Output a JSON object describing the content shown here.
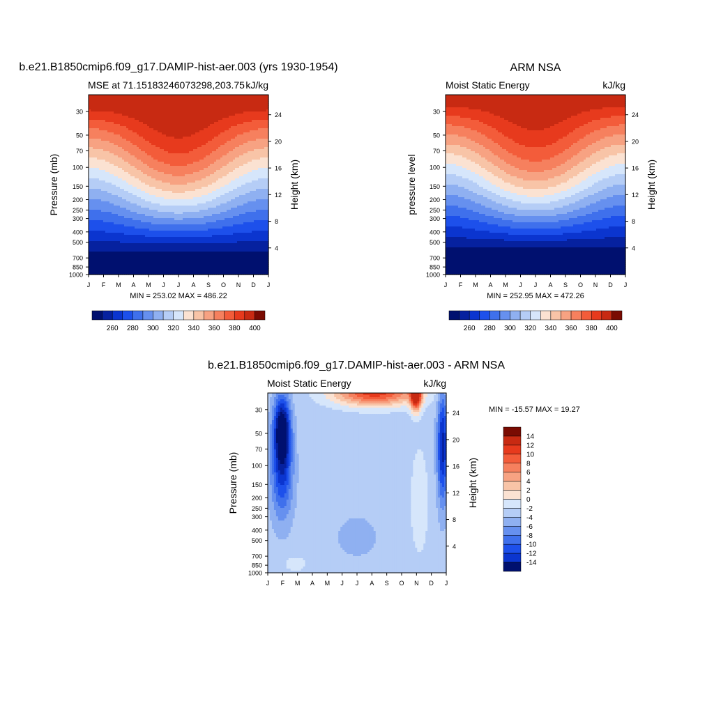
{
  "palette_warm": [
    "#fbe2d2",
    "#f8c4a7",
    "#f7a282",
    "#f6805e",
    "#f35c3a",
    "#e73a1d",
    "#c82a12",
    "#a11b09",
    "#7a0b02"
  ],
  "palette_cool": [
    "#d6e6fb",
    "#b5cdf6",
    "#8fb0f1",
    "#6690ef",
    "#3f70ec",
    "#1d50eb",
    "#0b35cf",
    "#06219f",
    "#00106f"
  ],
  "chart_data": [
    {
      "type": "heatmap",
      "title": "b.e21.B1850cmip6.f09_g17.DAMIP-hist-aer.003 (yrs 1930-1954)",
      "subtitle_left": "MSE at 71.15183246073298,203.75",
      "subtitle_right": "kJ/kg",
      "ylabel": "Pressure (mb)",
      "ylabel_right": "Height (km)",
      "x_ticks": [
        "J",
        "F",
        "M",
        "A",
        "M",
        "J",
        "J",
        "A",
        "S",
        "O",
        "N",
        "D",
        "J"
      ],
      "y_ticks": [
        30,
        50,
        70,
        100,
        150,
        200,
        250,
        300,
        400,
        500,
        700,
        850,
        1000
      ],
      "y_right_ticks": [
        24,
        20,
        16,
        12,
        8,
        4
      ],
      "stats": "MIN = 253.02 MAX = 486.22",
      "levels": [
        260,
        270,
        280,
        290,
        300,
        310,
        320,
        330,
        340,
        350,
        360,
        370,
        380,
        390,
        400
      ],
      "colorbar_labels": [
        "260",
        "280",
        "300",
        "320",
        "340",
        "360",
        "380",
        "400"
      ]
    },
    {
      "type": "heatmap",
      "title": "ARM NSA",
      "subtitle_left": "Moist Static Energy",
      "subtitle_right": "kJ/kg",
      "ylabel": "pressure level",
      "ylabel_right": "Height (km)",
      "x_ticks": [
        "J",
        "F",
        "M",
        "A",
        "M",
        "J",
        "J",
        "A",
        "S",
        "O",
        "N",
        "D",
        "J"
      ],
      "y_ticks": [
        30,
        50,
        70,
        100,
        150,
        200,
        250,
        300,
        400,
        500,
        700,
        850,
        1000
      ],
      "y_right_ticks": [
        24,
        20,
        16,
        12,
        8,
        4
      ],
      "stats": "MIN = 252.95 MAX = 472.26",
      "levels": [
        260,
        270,
        280,
        290,
        300,
        310,
        320,
        330,
        340,
        350,
        360,
        370,
        380,
        390,
        400
      ],
      "colorbar_labels": [
        "260",
        "280",
        "300",
        "320",
        "340",
        "360",
        "380",
        "400"
      ]
    },
    {
      "type": "heatmap",
      "title": "b.e21.B1850cmip6.f09_g17.DAMIP-hist-aer.003 - ARM NSA",
      "subtitle_left": "Moist Static Energy",
      "subtitle_right": "kJ/kg",
      "ylabel": "Pressure (mb)",
      "ylabel_right": "Height (km)",
      "x_ticks": [
        "J",
        "F",
        "M",
        "A",
        "M",
        "J",
        "J",
        "A",
        "S",
        "O",
        "N",
        "D",
        "J"
      ],
      "y_ticks": [
        30,
        50,
        70,
        100,
        150,
        200,
        250,
        300,
        400,
        500,
        700,
        850,
        1000
      ],
      "y_right_ticks": [
        24,
        20,
        16,
        12,
        8,
        4
      ],
      "stats": "MIN = -15.57 MAX =  19.27",
      "levels": [
        -14,
        -12,
        -10,
        -8,
        -6,
        -4,
        -2,
        0,
        2,
        4,
        6,
        8,
        10,
        12,
        14
      ],
      "colorbar_labels": [
        "14",
        "12",
        "10",
        "8",
        "6",
        "4",
        "2",
        "0",
        "-2",
        "-4",
        "-6",
        "-8",
        "-10",
        "-12",
        "-14"
      ]
    }
  ]
}
